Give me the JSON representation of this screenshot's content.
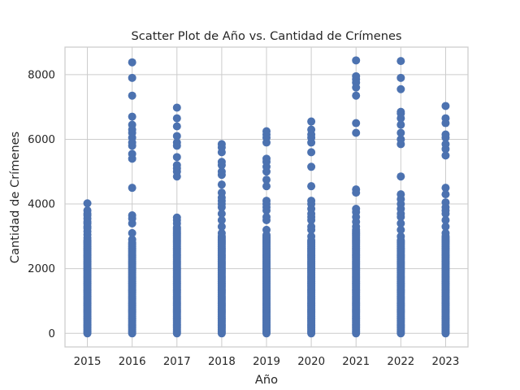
{
  "chart_data": {
    "type": "scatter",
    "title": "Scatter Plot de Año vs. Cantidad de Crímenes",
    "xlabel": "Año",
    "ylabel": "Cantidad de Crímenes",
    "x_ticks": [
      "2015",
      "2016",
      "2017",
      "2018",
      "2019",
      "2020",
      "2021",
      "2022",
      "2023"
    ],
    "y_ticks": [
      "0",
      "2000",
      "4000",
      "6000",
      "8000"
    ],
    "xlim": [
      2014.5,
      2023.5
    ],
    "ylim": [
      -420,
      8850
    ],
    "grid": true,
    "marker_color": "#4c72b0",
    "series": [
      {
        "points_by_year": [
          {
            "x": 2015,
            "dense_max": 2900,
            "y": [
              2950,
              3050,
              3150,
              3250,
              3300,
              3400,
              3450,
              3550,
              3650,
              3700,
              3800,
              4020
            ]
          },
          {
            "x": 2016,
            "dense_max": 2800,
            "y": [
              2900,
              3100,
              3400,
              3550,
              3650,
              4500,
              5400,
              5550,
              5800,
              5900,
              6050,
              6200,
              6300,
              6450,
              6700,
              7350,
              7900,
              8380
            ]
          },
          {
            "x": 2017,
            "dense_max": 3300,
            "y": [
              3400,
              3500,
              3580,
              4850,
              5000,
              5100,
              5200,
              5450,
              5800,
              5900,
              6100,
              6400,
              6650,
              6980
            ]
          },
          {
            "x": 2018,
            "dense_max": 3000,
            "y": [
              3100,
              3300,
              3500,
              3700,
              3900,
              4000,
              4100,
              4200,
              4350,
              4600,
              4900,
              5000,
              5200,
              5300,
              5600,
              5750,
              5850
            ]
          },
          {
            "x": 2019,
            "dense_max": 3050,
            "y": [
              3200,
              3500,
              3600,
              3800,
              3900,
              4000,
              4100,
              4550,
              4750,
              5000,
              5150,
              5300,
              5400,
              5900,
              6050,
              6150,
              6250
            ]
          },
          {
            "x": 2020,
            "dense_max": 2900,
            "y": [
              3000,
              3200,
              3300,
              3500,
              3600,
              3700,
              3850,
              4000,
              4100,
              4550,
              5150,
              5600,
              5900,
              6050,
              6150,
              6300,
              6550
            ]
          },
          {
            "x": 2021,
            "dense_max": 3200,
            "y": [
              3300,
              3450,
              3600,
              3750,
              3850,
              4350,
              4450,
              6200,
              6500,
              7350,
              7600,
              7750,
              7850,
              7950,
              8440
            ]
          },
          {
            "x": 2022,
            "dense_max": 2900,
            "y": [
              3000,
              3200,
              3400,
              3600,
              3700,
              3850,
              4000,
              4150,
              4300,
              4850,
              5850,
              6000,
              6200,
              6450,
              6650,
              6800,
              6850,
              7550,
              7900,
              8420
            ]
          },
          {
            "x": 2023,
            "dense_max": 3000,
            "y": [
              3100,
              3300,
              3500,
              3700,
              3800,
              3900,
              4050,
              4300,
              4500,
              5500,
              5700,
              5850,
              6050,
              6150,
              6500,
              6650,
              7030
            ]
          }
        ]
      }
    ]
  }
}
